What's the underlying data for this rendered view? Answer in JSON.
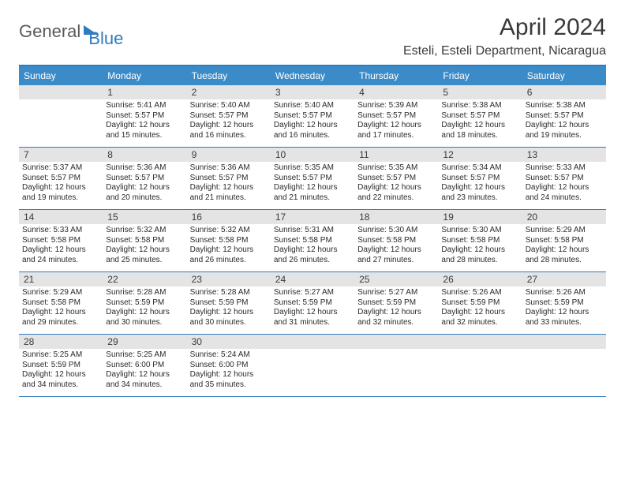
{
  "brand": {
    "part1": "General",
    "part2": "Blue"
  },
  "title": "April 2024",
  "location": "Esteli, Esteli Department, Nicaragua",
  "colors": {
    "header_bg": "#3b8bc9",
    "border": "#2f7bbf",
    "daynum_bg": "#e4e4e4",
    "text": "#3a3a3a",
    "brand_gray": "#5a5a5a",
    "brand_blue": "#2f7bbf"
  },
  "day_labels": [
    "Sunday",
    "Monday",
    "Tuesday",
    "Wednesday",
    "Thursday",
    "Friday",
    "Saturday"
  ],
  "weeks": [
    [
      {
        "num": "",
        "lines": []
      },
      {
        "num": "1",
        "lines": [
          "Sunrise: 5:41 AM",
          "Sunset: 5:57 PM",
          "Daylight: 12 hours",
          "and 15 minutes."
        ]
      },
      {
        "num": "2",
        "lines": [
          "Sunrise: 5:40 AM",
          "Sunset: 5:57 PM",
          "Daylight: 12 hours",
          "and 16 minutes."
        ]
      },
      {
        "num": "3",
        "lines": [
          "Sunrise: 5:40 AM",
          "Sunset: 5:57 PM",
          "Daylight: 12 hours",
          "and 16 minutes."
        ]
      },
      {
        "num": "4",
        "lines": [
          "Sunrise: 5:39 AM",
          "Sunset: 5:57 PM",
          "Daylight: 12 hours",
          "and 17 minutes."
        ]
      },
      {
        "num": "5",
        "lines": [
          "Sunrise: 5:38 AM",
          "Sunset: 5:57 PM",
          "Daylight: 12 hours",
          "and 18 minutes."
        ]
      },
      {
        "num": "6",
        "lines": [
          "Sunrise: 5:38 AM",
          "Sunset: 5:57 PM",
          "Daylight: 12 hours",
          "and 19 minutes."
        ]
      }
    ],
    [
      {
        "num": "7",
        "lines": [
          "Sunrise: 5:37 AM",
          "Sunset: 5:57 PM",
          "Daylight: 12 hours",
          "and 19 minutes."
        ]
      },
      {
        "num": "8",
        "lines": [
          "Sunrise: 5:36 AM",
          "Sunset: 5:57 PM",
          "Daylight: 12 hours",
          "and 20 minutes."
        ]
      },
      {
        "num": "9",
        "lines": [
          "Sunrise: 5:36 AM",
          "Sunset: 5:57 PM",
          "Daylight: 12 hours",
          "and 21 minutes."
        ]
      },
      {
        "num": "10",
        "lines": [
          "Sunrise: 5:35 AM",
          "Sunset: 5:57 PM",
          "Daylight: 12 hours",
          "and 21 minutes."
        ]
      },
      {
        "num": "11",
        "lines": [
          "Sunrise: 5:35 AM",
          "Sunset: 5:57 PM",
          "Daylight: 12 hours",
          "and 22 minutes."
        ]
      },
      {
        "num": "12",
        "lines": [
          "Sunrise: 5:34 AM",
          "Sunset: 5:57 PM",
          "Daylight: 12 hours",
          "and 23 minutes."
        ]
      },
      {
        "num": "13",
        "lines": [
          "Sunrise: 5:33 AM",
          "Sunset: 5:57 PM",
          "Daylight: 12 hours",
          "and 24 minutes."
        ]
      }
    ],
    [
      {
        "num": "14",
        "lines": [
          "Sunrise: 5:33 AM",
          "Sunset: 5:58 PM",
          "Daylight: 12 hours",
          "and 24 minutes."
        ]
      },
      {
        "num": "15",
        "lines": [
          "Sunrise: 5:32 AM",
          "Sunset: 5:58 PM",
          "Daylight: 12 hours",
          "and 25 minutes."
        ]
      },
      {
        "num": "16",
        "lines": [
          "Sunrise: 5:32 AM",
          "Sunset: 5:58 PM",
          "Daylight: 12 hours",
          "and 26 minutes."
        ]
      },
      {
        "num": "17",
        "lines": [
          "Sunrise: 5:31 AM",
          "Sunset: 5:58 PM",
          "Daylight: 12 hours",
          "and 26 minutes."
        ]
      },
      {
        "num": "18",
        "lines": [
          "Sunrise: 5:30 AM",
          "Sunset: 5:58 PM",
          "Daylight: 12 hours",
          "and 27 minutes."
        ]
      },
      {
        "num": "19",
        "lines": [
          "Sunrise: 5:30 AM",
          "Sunset: 5:58 PM",
          "Daylight: 12 hours",
          "and 28 minutes."
        ]
      },
      {
        "num": "20",
        "lines": [
          "Sunrise: 5:29 AM",
          "Sunset: 5:58 PM",
          "Daylight: 12 hours",
          "and 28 minutes."
        ]
      }
    ],
    [
      {
        "num": "21",
        "lines": [
          "Sunrise: 5:29 AM",
          "Sunset: 5:58 PM",
          "Daylight: 12 hours",
          "and 29 minutes."
        ]
      },
      {
        "num": "22",
        "lines": [
          "Sunrise: 5:28 AM",
          "Sunset: 5:59 PM",
          "Daylight: 12 hours",
          "and 30 minutes."
        ]
      },
      {
        "num": "23",
        "lines": [
          "Sunrise: 5:28 AM",
          "Sunset: 5:59 PM",
          "Daylight: 12 hours",
          "and 30 minutes."
        ]
      },
      {
        "num": "24",
        "lines": [
          "Sunrise: 5:27 AM",
          "Sunset: 5:59 PM",
          "Daylight: 12 hours",
          "and 31 minutes."
        ]
      },
      {
        "num": "25",
        "lines": [
          "Sunrise: 5:27 AM",
          "Sunset: 5:59 PM",
          "Daylight: 12 hours",
          "and 32 minutes."
        ]
      },
      {
        "num": "26",
        "lines": [
          "Sunrise: 5:26 AM",
          "Sunset: 5:59 PM",
          "Daylight: 12 hours",
          "and 32 minutes."
        ]
      },
      {
        "num": "27",
        "lines": [
          "Sunrise: 5:26 AM",
          "Sunset: 5:59 PM",
          "Daylight: 12 hours",
          "and 33 minutes."
        ]
      }
    ],
    [
      {
        "num": "28",
        "lines": [
          "Sunrise: 5:25 AM",
          "Sunset: 5:59 PM",
          "Daylight: 12 hours",
          "and 34 minutes."
        ]
      },
      {
        "num": "29",
        "lines": [
          "Sunrise: 5:25 AM",
          "Sunset: 6:00 PM",
          "Daylight: 12 hours",
          "and 34 minutes."
        ]
      },
      {
        "num": "30",
        "lines": [
          "Sunrise: 5:24 AM",
          "Sunset: 6:00 PM",
          "Daylight: 12 hours",
          "and 35 minutes."
        ]
      },
      {
        "num": "",
        "lines": []
      },
      {
        "num": "",
        "lines": []
      },
      {
        "num": "",
        "lines": []
      },
      {
        "num": "",
        "lines": []
      }
    ]
  ]
}
